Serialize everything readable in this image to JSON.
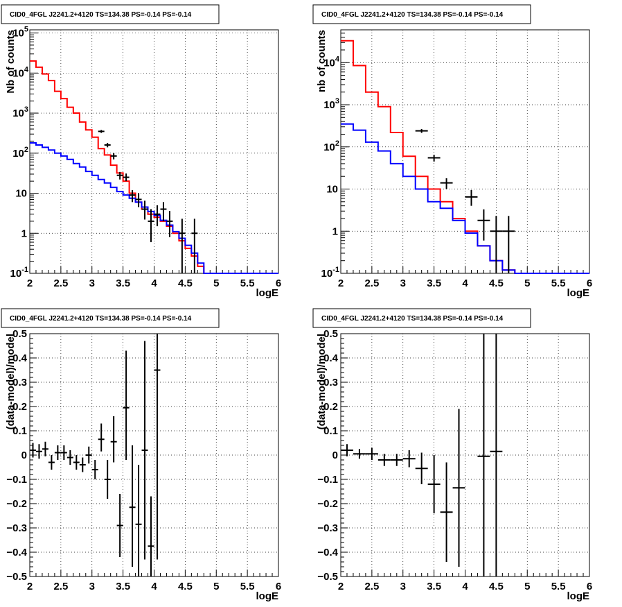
{
  "chart_data": [
    {
      "type": "histogram",
      "title": "CID0_4FGL J2241.2+4120 TS=134.38 PS=-0.14 PS=-0.14",
      "xlabel": "logE",
      "ylabel": "Nb of counts",
      "xlim": [
        2,
        6
      ],
      "ylim": [
        0.1,
        120000
      ],
      "log_y": true,
      "grid": true,
      "xticks": [
        "2",
        "2.5",
        "3",
        "3.5",
        "4",
        "4.5",
        "5",
        "5.5",
        "6"
      ],
      "yticks": [
        {
          "v": 0.1,
          "label": "10",
          "exp": "-1"
        },
        {
          "v": 1,
          "label": "1",
          "exp": ""
        },
        {
          "v": 10,
          "label": "10",
          "exp": ""
        },
        {
          "v": 100,
          "label": "10",
          "exp": "2"
        },
        {
          "v": 1000,
          "label": "10",
          "exp": "3"
        },
        {
          "v": 10000,
          "label": "10",
          "exp": "4"
        },
        {
          "v": 100000,
          "label": "10",
          "exp": "5"
        }
      ],
      "edges": [
        2.0,
        2.1,
        2.2,
        2.3,
        2.4,
        2.5,
        2.6,
        2.7,
        2.8,
        2.9,
        3.0,
        3.1,
        3.2,
        3.3,
        3.4,
        3.5,
        3.6,
        3.7,
        3.8,
        3.9,
        4.0,
        4.1,
        4.2,
        4.3,
        4.4,
        4.5,
        4.6,
        4.7,
        4.8,
        4.9,
        5.0,
        5.1,
        5.2,
        5.3,
        5.4,
        5.5,
        5.6,
        5.7,
        5.8,
        5.9,
        6.0
      ],
      "series": [
        {
          "name": "",
          "kind": "step",
          "color": "#ff0000",
          "values": [
            20000,
            14000,
            9500,
            6500,
            3500,
            2300,
            1400,
            1000,
            600,
            380,
            250,
            130,
            90,
            50,
            32,
            20,
            10,
            6,
            4,
            3,
            2.5,
            2,
            1.5,
            1,
            0.65,
            0.42,
            0.27,
            0.15,
            0.1,
            0.1,
            0.1,
            0.1,
            0.1,
            0.1,
            0.1,
            0.1,
            0.1,
            0.1,
            0.1,
            0.1
          ]
        },
        {
          "name": "",
          "kind": "step",
          "color": "#0000ff",
          "values": [
            180,
            160,
            140,
            120,
            100,
            85,
            70,
            55,
            45,
            35,
            28,
            22,
            18,
            14,
            11,
            9,
            7.5,
            6,
            4.5,
            3.5,
            2.8,
            2.1,
            1.6,
            1.1,
            0.75,
            0.5,
            0.32,
            0.18,
            0.1,
            0.1,
            0.1,
            0.1,
            0.1,
            0.1,
            0.1,
            0.1,
            0.1,
            0.1,
            0.1,
            0.1
          ]
        },
        {
          "name": "",
          "kind": "points",
          "points": [
            {
              "x": 3.15,
              "y": 350,
              "lo": 320,
              "hi": 380,
              "dx": 0.05
            },
            {
              "x": 3.25,
              "y": 160,
              "lo": 140,
              "hi": 180,
              "dx": 0.05
            },
            {
              "x": 3.35,
              "y": 85,
              "lo": 70,
              "hi": 100,
              "dx": 0.05
            },
            {
              "x": 3.45,
              "y": 28,
              "lo": 22,
              "hi": 34,
              "dx": 0.05
            },
            {
              "x": 3.55,
              "y": 25,
              "lo": 20,
              "hi": 31,
              "dx": 0.05
            },
            {
              "x": 3.65,
              "y": 9,
              "lo": 6,
              "hi": 12,
              "dx": 0.05
            },
            {
              "x": 3.75,
              "y": 7,
              "lo": 4.5,
              "hi": 10,
              "dx": 0.05
            },
            {
              "x": 3.85,
              "y": 4,
              "lo": 2.2,
              "hi": 6.5,
              "dx": 0.05
            },
            {
              "x": 3.95,
              "y": 2,
              "lo": 0.6,
              "hi": 4,
              "dx": 0.05
            },
            {
              "x": 4.05,
              "y": 3,
              "lo": 1.5,
              "hi": 5,
              "dx": 0.05
            },
            {
              "x": 4.15,
              "y": 4,
              "lo": 2,
              "hi": 6,
              "dx": 0.05
            },
            {
              "x": 4.25,
              "y": 2,
              "lo": 0.8,
              "hi": 3.6,
              "dx": 0.05
            },
            {
              "x": 4.45,
              "y": 1,
              "lo": 0.1,
              "hi": 2.3,
              "dx": 0.05
            },
            {
              "x": 4.65,
              "y": 1,
              "lo": 0.1,
              "hi": 2.3,
              "dx": 0.05
            }
          ]
        }
      ]
    },
    {
      "type": "histogram",
      "title": "CID0_4FGL J2241.2+4120 TS=134.38 PS=-0.14 PS=-0.14",
      "xlabel": "logE",
      "ylabel": "nb of counts",
      "xlim": [
        2,
        6
      ],
      "ylim": [
        0.1,
        60000
      ],
      "log_y": true,
      "grid": true,
      "xticks": [
        "2",
        "2.5",
        "3",
        "3.5",
        "4",
        "4.5",
        "5",
        "5.5",
        "6"
      ],
      "yticks": [
        {
          "v": 0.1,
          "label": "10",
          "exp": "-1"
        },
        {
          "v": 1,
          "label": "1",
          "exp": ""
        },
        {
          "v": 10,
          "label": "10",
          "exp": ""
        },
        {
          "v": 100,
          "label": "10",
          "exp": "2"
        },
        {
          "v": 1000,
          "label": "10",
          "exp": "3"
        },
        {
          "v": 10000,
          "label": "10",
          "exp": "4"
        }
      ],
      "edges": [
        2.0,
        2.2,
        2.4,
        2.6,
        2.8,
        3.0,
        3.2,
        3.4,
        3.6,
        3.8,
        4.0,
        4.2,
        4.4,
        4.6,
        4.8,
        5.0,
        5.2,
        5.4,
        5.6,
        5.8,
        6.0
      ],
      "series": [
        {
          "name": "",
          "kind": "step",
          "color": "#ff0000",
          "values": [
            33000,
            8500,
            2000,
            900,
            220,
            60,
            20,
            10,
            5,
            2,
            1,
            0.45,
            0.2,
            0.12,
            0.1,
            0.1,
            0.1,
            0.1,
            0.1,
            0.1
          ]
        },
        {
          "name": "",
          "kind": "step",
          "color": "#0000ff",
          "values": [
            350,
            250,
            130,
            80,
            40,
            20,
            10,
            5,
            3.5,
            1.8,
            0.9,
            0.45,
            0.2,
            0.12,
            0.1,
            0.1,
            0.1,
            0.1,
            0.1,
            0.1
          ]
        },
        {
          "name": "",
          "kind": "points",
          "points": [
            {
              "x": 3.3,
              "y": 240,
              "lo": 215,
              "hi": 265,
              "dx": 0.1
            },
            {
              "x": 3.5,
              "y": 55,
              "lo": 45,
              "hi": 65,
              "dx": 0.1
            },
            {
              "x": 3.7,
              "y": 14,
              "lo": 10,
              "hi": 18,
              "dx": 0.1
            },
            {
              "x": 4.1,
              "y": 6.5,
              "lo": 4,
              "hi": 9.5,
              "dx": 0.1
            },
            {
              "x": 4.3,
              "y": 1.8,
              "lo": 0.6,
              "hi": 3.3,
              "dx": 0.1
            },
            {
              "x": 4.5,
              "y": 1,
              "lo": 0.1,
              "hi": 2.3,
              "dx": 0.1
            },
            {
              "x": 4.7,
              "y": 1,
              "lo": 0.1,
              "hi": 2.3,
              "dx": 0.1
            }
          ]
        }
      ]
    },
    {
      "type": "scatter",
      "title": "CID0_4FGL J2241.2+4120 TS=134.38 PS=-0.14 PS=-0.14",
      "xlabel": "logE",
      "ylabel": "(data-model)/model",
      "xlim": [
        2,
        6
      ],
      "ylim": [
        -0.5,
        0.5
      ],
      "log_y": false,
      "grid": true,
      "xticks": [
        "2",
        "2.5",
        "3",
        "3.5",
        "4",
        "4.5",
        "5",
        "5.5",
        "6"
      ],
      "yticks": [
        {
          "v": -0.5,
          "label": "−0.5",
          "exp": ""
        },
        {
          "v": -0.4,
          "label": "−0.4",
          "exp": ""
        },
        {
          "v": -0.3,
          "label": "−0.3",
          "exp": ""
        },
        {
          "v": -0.2,
          "label": "−0.2",
          "exp": ""
        },
        {
          "v": -0.1,
          "label": "−0.1",
          "exp": ""
        },
        {
          "v": 0,
          "label": "0",
          "exp": ""
        },
        {
          "v": 0.1,
          "label": "0.1",
          "exp": ""
        },
        {
          "v": 0.2,
          "label": "0.2",
          "exp": ""
        },
        {
          "v": 0.3,
          "label": "0.3",
          "exp": ""
        },
        {
          "v": 0.4,
          "label": "0.4",
          "exp": ""
        },
        {
          "v": 0.5,
          "label": "0.5",
          "exp": ""
        }
      ],
      "series": [
        {
          "name": "",
          "kind": "points",
          "points": [
            {
              "x": 2.05,
              "y": 0.02,
              "lo": -0.01,
              "hi": 0.05,
              "dx": 0.05
            },
            {
              "x": 2.15,
              "y": 0.015,
              "lo": -0.015,
              "hi": 0.045,
              "dx": 0.05
            },
            {
              "x": 2.25,
              "y": 0.025,
              "lo": -0.005,
              "hi": 0.055,
              "dx": 0.05
            },
            {
              "x": 2.35,
              "y": -0.03,
              "lo": -0.06,
              "hi": 0.0,
              "dx": 0.05
            },
            {
              "x": 2.45,
              "y": 0.01,
              "lo": -0.02,
              "hi": 0.04,
              "dx": 0.05
            },
            {
              "x": 2.55,
              "y": 0.01,
              "lo": -0.02,
              "hi": 0.04,
              "dx": 0.05
            },
            {
              "x": 2.65,
              "y": -0.01,
              "lo": -0.04,
              "hi": 0.02,
              "dx": 0.05
            },
            {
              "x": 2.75,
              "y": -0.03,
              "lo": -0.06,
              "hi": 0.0,
              "dx": 0.05
            },
            {
              "x": 2.85,
              "y": -0.04,
              "lo": -0.07,
              "hi": -0.01,
              "dx": 0.05
            },
            {
              "x": 2.95,
              "y": 0.0,
              "lo": -0.035,
              "hi": 0.035,
              "dx": 0.05
            },
            {
              "x": 3.05,
              "y": -0.06,
              "lo": -0.1,
              "hi": -0.02,
              "dx": 0.05
            },
            {
              "x": 3.15,
              "y": 0.065,
              "lo": 0.015,
              "hi": 0.13,
              "dx": 0.05
            },
            {
              "x": 3.25,
              "y": -0.1,
              "lo": -0.18,
              "hi": -0.02,
              "dx": 0.05
            },
            {
              "x": 3.35,
              "y": 0.055,
              "lo": -0.03,
              "hi": 0.16,
              "dx": 0.05
            },
            {
              "x": 3.45,
              "y": -0.29,
              "lo": -0.42,
              "hi": -0.16,
              "dx": 0.05
            },
            {
              "x": 3.55,
              "y": 0.195,
              "lo": -0.02,
              "hi": 0.43,
              "dx": 0.05
            },
            {
              "x": 3.65,
              "y": -0.215,
              "lo": -0.46,
              "hi": 0.04,
              "dx": 0.05
            },
            {
              "x": 3.75,
              "y": -0.285,
              "lo": -0.5,
              "hi": -0.04,
              "dx": 0.05
            },
            {
              "x": 3.85,
              "y": 0.02,
              "lo": -0.43,
              "hi": 0.47,
              "dx": 0.05
            },
            {
              "x": 3.95,
              "y": -0.375,
              "lo": -0.5,
              "hi": -0.17,
              "dx": 0.05
            },
            {
              "x": 4.05,
              "y": 0.35,
              "lo": -0.43,
              "hi": 0.5,
              "dx": 0.05
            }
          ]
        }
      ]
    },
    {
      "type": "scatter",
      "title": "CID0_4FGL J2241.2+4120 TS=134.38 PS=-0.14 PS=-0.14",
      "xlabel": "logE",
      "ylabel": "(data-model)/model",
      "xlim": [
        2,
        6
      ],
      "ylim": [
        -0.5,
        0.5
      ],
      "log_y": false,
      "grid": true,
      "xticks": [
        "2",
        "2.5",
        "3",
        "3.5",
        "4",
        "4.5",
        "5",
        "5.5",
        "6"
      ],
      "yticks": [
        {
          "v": -0.5,
          "label": "−0.5",
          "exp": ""
        },
        {
          "v": -0.4,
          "label": "−0.4",
          "exp": ""
        },
        {
          "v": -0.3,
          "label": "−0.3",
          "exp": ""
        },
        {
          "v": -0.2,
          "label": "−0.2",
          "exp": ""
        },
        {
          "v": -0.1,
          "label": "−0.1",
          "exp": ""
        },
        {
          "v": 0,
          "label": "0",
          "exp": ""
        },
        {
          "v": 0.1,
          "label": "0.1",
          "exp": ""
        },
        {
          "v": 0.2,
          "label": "0.2",
          "exp": ""
        },
        {
          "v": 0.3,
          "label": "0.3",
          "exp": ""
        },
        {
          "v": 0.4,
          "label": "0.4",
          "exp": ""
        },
        {
          "v": 0.5,
          "label": "0.5",
          "exp": ""
        }
      ],
      "series": [
        {
          "name": "",
          "kind": "points",
          "points": [
            {
              "x": 2.1,
              "y": 0.02,
              "lo": -0.005,
              "hi": 0.045,
              "dx": 0.1
            },
            {
              "x": 2.3,
              "y": 0.005,
              "lo": -0.015,
              "hi": 0.025,
              "dx": 0.1
            },
            {
              "x": 2.5,
              "y": 0.005,
              "lo": -0.02,
              "hi": 0.03,
              "dx": 0.1
            },
            {
              "x": 2.7,
              "y": -0.02,
              "lo": -0.045,
              "hi": 0.005,
              "dx": 0.1
            },
            {
              "x": 2.9,
              "y": -0.02,
              "lo": -0.045,
              "hi": 0.005,
              "dx": 0.1
            },
            {
              "x": 3.1,
              "y": -0.015,
              "lo": -0.05,
              "hi": 0.02,
              "dx": 0.1
            },
            {
              "x": 3.3,
              "y": -0.055,
              "lo": -0.12,
              "hi": 0.01,
              "dx": 0.1
            },
            {
              "x": 3.5,
              "y": -0.12,
              "lo": -0.24,
              "hi": 0.0,
              "dx": 0.1
            },
            {
              "x": 3.7,
              "y": -0.235,
              "lo": -0.44,
              "hi": -0.03,
              "dx": 0.1
            },
            {
              "x": 3.9,
              "y": -0.135,
              "lo": -0.46,
              "hi": 0.19,
              "dx": 0.1
            },
            {
              "x": 4.3,
              "y": -0.005,
              "lo": -0.5,
              "hi": 0.5,
              "dx": 0.1
            },
            {
              "x": 4.5,
              "y": 0.015,
              "lo": -0.5,
              "hi": 0.5,
              "dx": 0.1
            }
          ]
        }
      ]
    }
  ]
}
